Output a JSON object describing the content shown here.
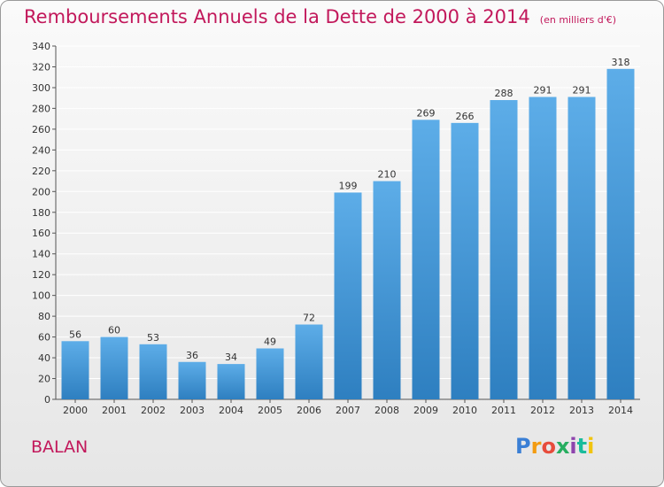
{
  "header": {
    "title": "Remboursements Annuels de la Dette de 2000 à 2014",
    "subtitle": "(en milliers d'€)"
  },
  "footer": {
    "place": "BALAN",
    "brand": "Proxiti",
    "brand_colors": [
      "#3a7fd5",
      "#f39c12",
      "#e74c3c",
      "#27ae60",
      "#8e44ad",
      "#1abc9c",
      "#f1c40f"
    ]
  },
  "colors": {
    "bar_light": "#5dade8",
    "bar_dark": "#2e7fc0",
    "text_accent": "#c2185b",
    "grid": "#ffffff"
  },
  "chart_data": {
    "type": "bar",
    "title": "Remboursements Annuels de la Dette de 2000 à 2014",
    "subtitle": "(en milliers d'€)",
    "xlabel": "",
    "ylabel": "",
    "categories": [
      "2000",
      "2001",
      "2002",
      "2003",
      "2004",
      "2005",
      "2006",
      "2007",
      "2008",
      "2009",
      "2010",
      "2011",
      "2012",
      "2013",
      "2014"
    ],
    "values": [
      56,
      60,
      53,
      36,
      34,
      49,
      72,
      199,
      210,
      269,
      266,
      288,
      291,
      291,
      318
    ],
    "ylim": [
      0,
      340
    ],
    "yticks": [
      0,
      20,
      40,
      60,
      80,
      100,
      120,
      140,
      160,
      180,
      200,
      220,
      240,
      260,
      280,
      300,
      320,
      340
    ],
    "grid": true,
    "data_labels": true
  }
}
